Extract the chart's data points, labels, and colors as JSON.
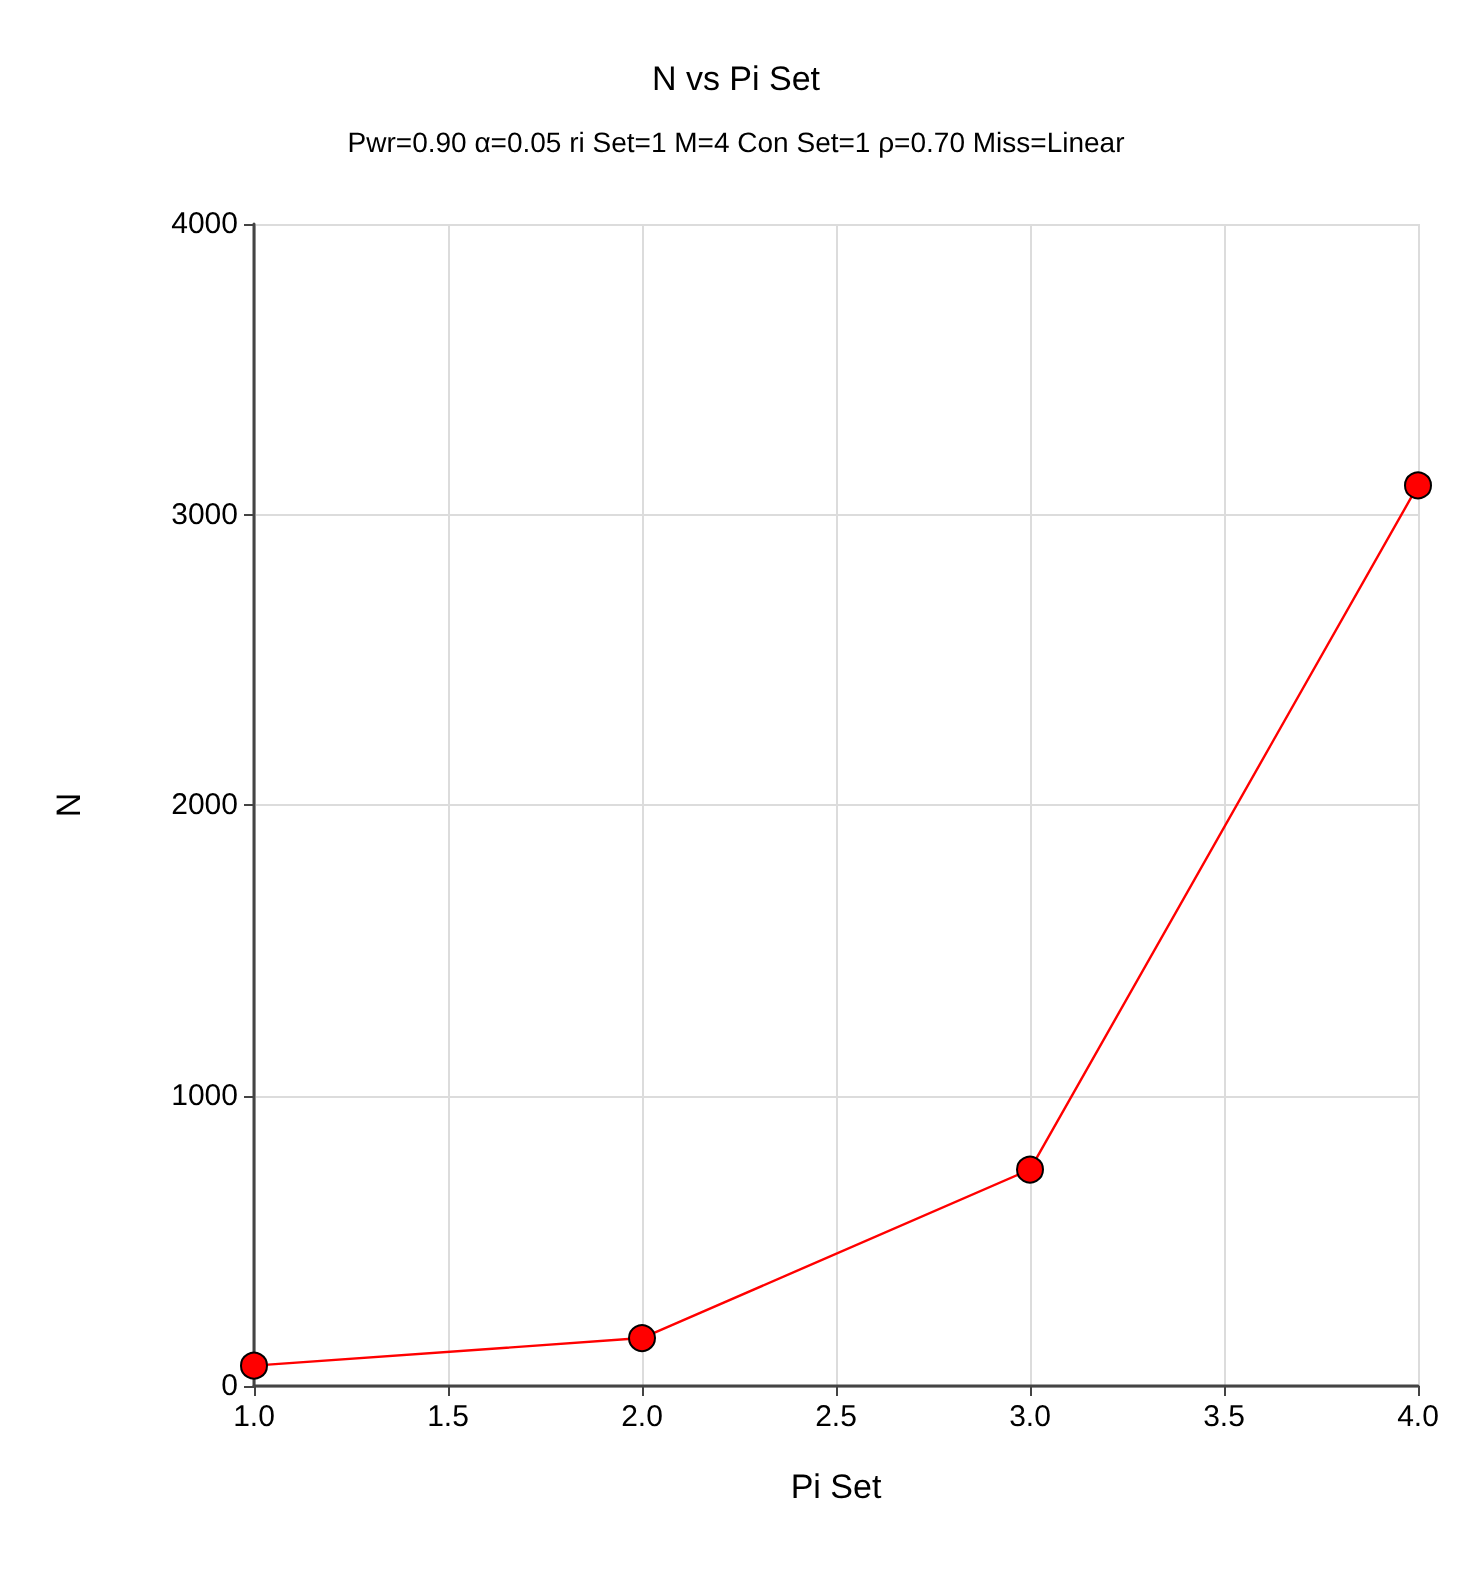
{
  "chart_data": {
    "type": "line",
    "title": "N vs Pi Set",
    "subtitle": "Pwr=0.90 α=0.05 ri Set=1 M=4 Con Set=1 ρ=0.70 Miss=Linear",
    "xlabel": "Pi Set",
    "ylabel": "N",
    "x": [
      1,
      2,
      3,
      4
    ],
    "series": [
      {
        "color": "#ff0000",
        "values": [
          70,
          165,
          745,
          3100
        ]
      }
    ],
    "xlim": [
      1,
      4
    ],
    "xticks": [
      {
        "value": 1,
        "label": "1.0"
      },
      {
        "value": 1.5,
        "label": "1.5"
      },
      {
        "value": 2,
        "label": "2.0"
      },
      {
        "value": 2.5,
        "label": "2.5"
      },
      {
        "value": 3,
        "label": "3.0"
      },
      {
        "value": 3.5,
        "label": "3.5"
      },
      {
        "value": 4,
        "label": "4.0"
      }
    ],
    "ylim": [
      0,
      4000
    ],
    "yticks": [
      0,
      1000,
      2000,
      3000,
      4000
    ],
    "grid": true,
    "marker": "circle",
    "line_style": "solid"
  }
}
